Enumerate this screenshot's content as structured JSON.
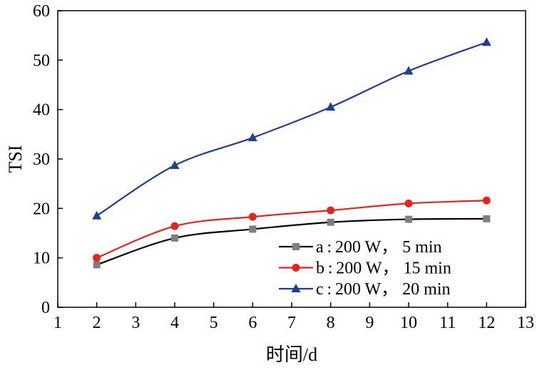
{
  "chart_data": {
    "type": "line",
    "xlabel": "时间/d",
    "ylabel": "TSI",
    "xlim": [
      1,
      13
    ],
    "ylim": [
      0,
      60
    ],
    "xticks": [
      "1",
      "2",
      "3",
      "4",
      "5",
      "6",
      "7",
      "8",
      "9",
      "10",
      "11",
      "12",
      "13"
    ],
    "yticks": [
      "0",
      "10",
      "20",
      "30",
      "40",
      "50",
      "60"
    ],
    "grid": false,
    "legend_position": "bottom-right",
    "x": [
      2,
      4,
      6,
      8,
      10,
      12
    ],
    "series": [
      {
        "name": "a : 200 W，  5 min",
        "values": [
          8.6,
          14.0,
          15.8,
          17.2,
          17.8,
          17.9
        ],
        "color": "#000000",
        "marker_color": "#7f7f7f",
        "marker": "square"
      },
      {
        "name": "b : 200 W，  15 min",
        "values": [
          10.0,
          16.4,
          18.3,
          19.6,
          21.0,
          21.6
        ],
        "color": "#e8231f",
        "marker_color": "#e8231f",
        "marker": "circle"
      },
      {
        "name": "c : 200 W，  20 min",
        "values": [
          18.5,
          28.7,
          34.3,
          40.5,
          47.8,
          53.6
        ],
        "color": "#1f3f94",
        "marker_color": "#1f3f94",
        "marker": "triangle"
      }
    ]
  }
}
